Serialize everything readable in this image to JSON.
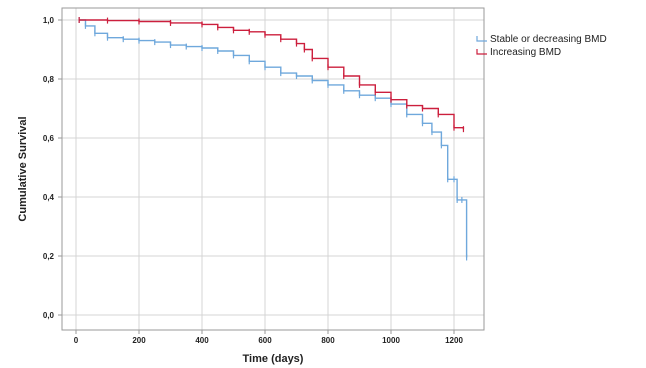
{
  "chart_data": {
    "type": "line",
    "subtype": "kaplan-meier step",
    "title": "",
    "xlabel": "Time (days)",
    "ylabel": "Cumulative Survival",
    "xlim": [
      0,
      1300
    ],
    "ylim": [
      0,
      1.0
    ],
    "x_ticks": [
      0,
      200,
      400,
      600,
      800,
      1000,
      1200
    ],
    "x_tick_labels": [
      "0",
      "200",
      "400",
      "600",
      "800",
      "1000",
      "1200"
    ],
    "y_ticks": [
      0.0,
      0.2,
      0.4,
      0.6,
      0.8,
      1.0
    ],
    "y_tick_labels": [
      "0,0",
      "0,2",
      "0,4",
      "0,6",
      "0,8",
      "1,0"
    ],
    "grid": true,
    "legend_position": "top-right",
    "series": [
      {
        "name": "Stable or decreasing BMD",
        "color": "#6fa8dc",
        "x": [
          10,
          30,
          60,
          100,
          150,
          200,
          250,
          300,
          350,
          400,
          450,
          500,
          550,
          600,
          650,
          700,
          750,
          800,
          850,
          900,
          950,
          1000,
          1050,
          1100,
          1130,
          1160,
          1180,
          1200,
          1210,
          1225,
          1240
        ],
        "y": [
          1.0,
          0.98,
          0.955,
          0.94,
          0.935,
          0.93,
          0.925,
          0.915,
          0.91,
          0.905,
          0.895,
          0.88,
          0.86,
          0.84,
          0.82,
          0.81,
          0.795,
          0.78,
          0.76,
          0.745,
          0.735,
          0.715,
          0.68,
          0.65,
          0.62,
          0.575,
          0.46,
          0.46,
          0.39,
          0.39,
          0.195
        ]
      },
      {
        "name": "Increasing BMD",
        "color": "#cc1f3d",
        "x": [
          10,
          100,
          200,
          300,
          400,
          450,
          500,
          550,
          600,
          650,
          700,
          725,
          750,
          800,
          850,
          900,
          950,
          1000,
          1050,
          1100,
          1150,
          1200,
          1230
        ],
        "y": [
          1.0,
          0.998,
          0.995,
          0.99,
          0.985,
          0.975,
          0.965,
          0.96,
          0.95,
          0.935,
          0.92,
          0.9,
          0.87,
          0.84,
          0.81,
          0.78,
          0.755,
          0.73,
          0.71,
          0.7,
          0.68,
          0.635,
          0.63
        ]
      }
    ]
  }
}
